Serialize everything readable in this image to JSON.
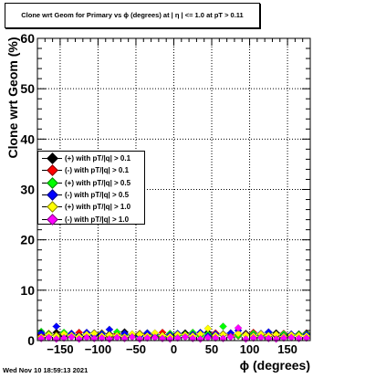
{
  "title": "Clone wrt Geom for Primary vs ϕ (degrees) at |  η | <= 1.0 at pT > 0.11",
  "footer_date": "Wed Nov 10 18:59:13 2021",
  "chart_data": {
    "type": "scatter",
    "xlabel": "ϕ (degrees)",
    "ylabel": "Clone wrt Geom (%)",
    "xlim": [
      -180,
      180
    ],
    "ylim": [
      0,
      60
    ],
    "grid": true,
    "legend_position": "left",
    "x_ticks": [
      -150,
      -100,
      -50,
      0,
      50,
      100,
      150
    ],
    "x_tick_labels": [
      "−150",
      "−100",
      "−50",
      "0",
      "50",
      "100",
      "150"
    ],
    "y_ticks": [
      0,
      10,
      20,
      30,
      40,
      50,
      60
    ],
    "y_tick_labels": [
      "0",
      "10",
      "20",
      "30",
      "40",
      "50",
      "60"
    ],
    "series": [
      {
        "name": "(+) with pT/|q| > 0.1",
        "color": "#000000",
        "x": [
          -175,
          -165,
          -155,
          -145,
          -135,
          -125,
          -115,
          -105,
          -95,
          -85,
          -75,
          -65,
          -55,
          -45,
          -35,
          -25,
          -15,
          -5,
          5,
          15,
          25,
          35,
          45,
          55,
          65,
          75,
          85,
          95,
          105,
          115,
          125,
          135,
          145,
          155,
          165,
          175
        ],
        "y": [
          1.2,
          1.0,
          1.6,
          0.9,
          1.4,
          1.1,
          0.8,
          1.5,
          1.0,
          1.3,
          0.9,
          1.7,
          1.2,
          1.0,
          1.4,
          0.8,
          1.1,
          1.3,
          1.0,
          1.5,
          0.9,
          1.2,
          1.6,
          1.0,
          1.3,
          0.8,
          1.1,
          1.4,
          1.0,
          1.2,
          0.9,
          1.5,
          1.1,
          1.0,
          1.3,
          1.2
        ]
      },
      {
        "name": "(-) with pT/|q| > 0.1",
        "color": "#ff0000",
        "x": [
          -175,
          -165,
          -155,
          -145,
          -135,
          -125,
          -115,
          -105,
          -95,
          -85,
          -75,
          -65,
          -55,
          -45,
          -35,
          -25,
          -15,
          -5,
          5,
          15,
          25,
          35,
          45,
          55,
          65,
          75,
          85,
          95,
          105,
          115,
          125,
          135,
          145,
          155,
          165,
          175
        ],
        "y": [
          1.0,
          1.4,
          1.1,
          1.3,
          0.9,
          1.6,
          1.2,
          1.0,
          1.5,
          0.8,
          1.3,
          1.1,
          0.9,
          1.4,
          1.2,
          1.0,
          1.6,
          0.9,
          1.3,
          1.1,
          1.4,
          1.0,
          0.8,
          1.5,
          1.2,
          1.1,
          0.9,
          1.3,
          1.6,
          1.0,
          1.2,
          0.9,
          1.4,
          1.1,
          1.0,
          1.5
        ]
      },
      {
        "name": "(+) with pT/|q| > 0.5",
        "color": "#00ff00",
        "x": [
          -175,
          -165,
          -155,
          -145,
          -135,
          -125,
          -115,
          -105,
          -95,
          -85,
          -75,
          -65,
          -55,
          -45,
          -35,
          -25,
          -15,
          -5,
          5,
          15,
          25,
          35,
          45,
          55,
          65,
          75,
          85,
          95,
          105,
          115,
          125,
          135,
          145,
          155,
          165,
          175
        ],
        "y": [
          1.8,
          1.3,
          1.0,
          1.6,
          1.2,
          0.9,
          1.5,
          1.1,
          1.4,
          1.0,
          1.7,
          1.2,
          0.9,
          1.3,
          1.5,
          1.1,
          0.8,
          1.4,
          1.0,
          1.2,
          1.6,
          0.9,
          1.3,
          1.1,
          2.8,
          1.5,
          1.0,
          1.2,
          1.4,
          0.9,
          1.6,
          1.1,
          1.3,
          1.0,
          1.2,
          1.4
        ]
      },
      {
        "name": "(-) with pT/|q| > 0.5",
        "color": "#0000ff",
        "x": [
          -175,
          -165,
          -155,
          -145,
          -135,
          -125,
          -115,
          -105,
          -95,
          -85,
          -75,
          -65,
          -55,
          -45,
          -35,
          -25,
          -15,
          -5,
          5,
          15,
          25,
          35,
          45,
          55,
          65,
          75,
          85,
          95,
          105,
          115,
          125,
          135,
          145,
          155,
          165,
          175
        ],
        "y": [
          1.5,
          1.0,
          2.8,
          1.2,
          1.4,
          0.9,
          1.6,
          1.1,
          1.3,
          2.2,
          1.0,
          1.4,
          1.2,
          0.9,
          1.5,
          1.3,
          1.0,
          1.1,
          1.4,
          1.0,
          1.2,
          1.6,
          0.9,
          1.3,
          1.1,
          1.5,
          2.0,
          1.2,
          1.0,
          1.4,
          1.7,
          1.1,
          0.9,
          1.3,
          1.0,
          1.2
        ]
      },
      {
        "name": "(+) with pT/|q| > 1.0",
        "color": "#ffff00",
        "x": [
          -175,
          -165,
          -155,
          -145,
          -135,
          -125,
          -115,
          -105,
          -95,
          -85,
          -75,
          -65,
          -55,
          -45,
          -35,
          -25,
          -15,
          -5,
          5,
          15,
          25,
          35,
          45,
          55,
          65,
          75,
          85,
          95,
          105,
          115,
          125,
          135,
          145,
          155,
          165,
          175
        ],
        "y": [
          0.7,
          1.1,
          0.9,
          1.3,
          1.0,
          0.8,
          1.2,
          1.4,
          0.9,
          1.1,
          1.0,
          0.7,
          1.3,
          1.2,
          0.9,
          1.5,
          1.0,
          0.8,
          1.2,
          1.1,
          0.9,
          1.3,
          2.4,
          1.0,
          1.2,
          0.8,
          1.4,
          1.1,
          0.9,
          1.3,
          1.0,
          1.2,
          0.8,
          1.1,
          1.0,
          0.9
        ]
      },
      {
        "name": "(-) with pT/|q| > 1.0",
        "color": "#ff00ff",
        "x": [
          -175,
          -165,
          -155,
          -145,
          -135,
          -125,
          -115,
          -105,
          -95,
          -85,
          -75,
          -65,
          -55,
          -45,
          -35,
          -25,
          -15,
          -5,
          5,
          15,
          25,
          35,
          45,
          55,
          65,
          75,
          85,
          95,
          105,
          115,
          125,
          135,
          145,
          155,
          165,
          175
        ],
        "y": [
          0.4,
          0.6,
          0.3,
          0.5,
          0.7,
          0.3,
          0.6,
          0.4,
          0.5,
          0.3,
          0.6,
          0.4,
          0.7,
          0.3,
          0.5,
          0.6,
          0.4,
          0.3,
          0.5,
          0.7,
          0.4,
          0.3,
          0.6,
          0.5,
          0.4,
          0.7,
          2.5,
          0.3,
          0.5,
          0.6,
          0.4,
          0.3,
          0.5,
          0.6,
          0.4,
          0.5
        ]
      }
    ]
  }
}
